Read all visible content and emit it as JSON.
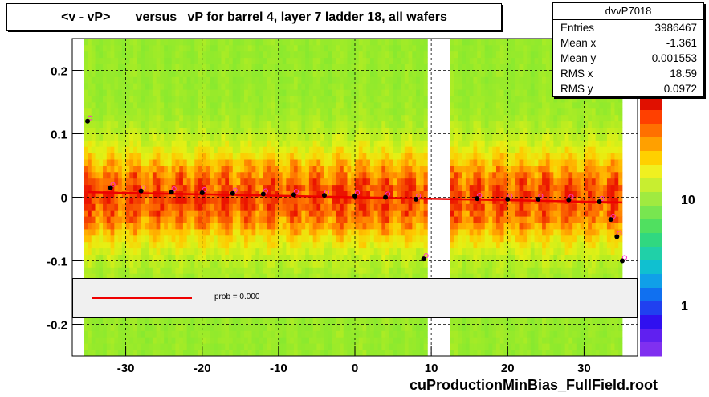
{
  "title": "<v - vP>       versus   vP for barrel 4, layer 7 ladder 18, all wafers",
  "stats": {
    "name": "dvvP7018",
    "rows": [
      {
        "label": "Entries",
        "value": "3986467"
      },
      {
        "label": "Mean x",
        "value": "-1.361"
      },
      {
        "label": "Mean y",
        "value": "0.001553"
      },
      {
        "label": "RMS x",
        "value": "18.59"
      },
      {
        "label": "RMS y",
        "value": "0.0972"
      }
    ]
  },
  "legend": {
    "text": "prob = 0.000",
    "color": "#ee0000"
  },
  "footer": "cuProductionMinBias_FullField.root",
  "colors": {
    "profile_points": "#000000",
    "profile_markers": "#ff33cc",
    "fit_line": "#ee0000"
  },
  "chart_data": {
    "type": "heatmap",
    "title": "<v - vP>       versus   vP for barrel 4, layer 7 ladder 18, all wafers",
    "xlim": [
      -37,
      37
    ],
    "ylim": [
      -0.25,
      0.25
    ],
    "x_ticks": [
      "-30",
      "-20",
      "-10",
      "0",
      "10",
      "20",
      "30"
    ],
    "y_ticks": [
      "0.2",
      "0.1",
      "0",
      "-0.1",
      "-0.2"
    ],
    "z_ticks": [
      "1",
      "10"
    ],
    "gap_x": [
      9.5,
      13
    ],
    "grid": true,
    "profile": [
      {
        "x": -35,
        "y": 0.12
      },
      {
        "x": -32,
        "y": 0.015
      },
      {
        "x": -28,
        "y": 0.01
      },
      {
        "x": -24,
        "y": 0.008
      },
      {
        "x": -20,
        "y": 0.007
      },
      {
        "x": -16,
        "y": 0.006
      },
      {
        "x": -12,
        "y": 0.005
      },
      {
        "x": -8,
        "y": 0.004
      },
      {
        "x": -4,
        "y": 0.003
      },
      {
        "x": 0,
        "y": 0.002
      },
      {
        "x": 4,
        "y": 0.0
      },
      {
        "x": 8,
        "y": -0.003
      },
      {
        "x": 9,
        "y": -0.097
      },
      {
        "x": 16,
        "y": -0.002
      },
      {
        "x": 20,
        "y": -0.003
      },
      {
        "x": 24,
        "y": -0.003
      },
      {
        "x": 28,
        "y": -0.004
      },
      {
        "x": 32,
        "y": -0.007
      },
      {
        "x": 33.5,
        "y": -0.035
      },
      {
        "x": 34.3,
        "y": -0.062
      },
      {
        "x": 35,
        "y": -0.1
      }
    ],
    "fit_line": [
      {
        "x": -35,
        "y": 0.008
      },
      {
        "x": 35,
        "y": -0.008
      }
    ],
    "legend_text": "prob = 0.000"
  }
}
